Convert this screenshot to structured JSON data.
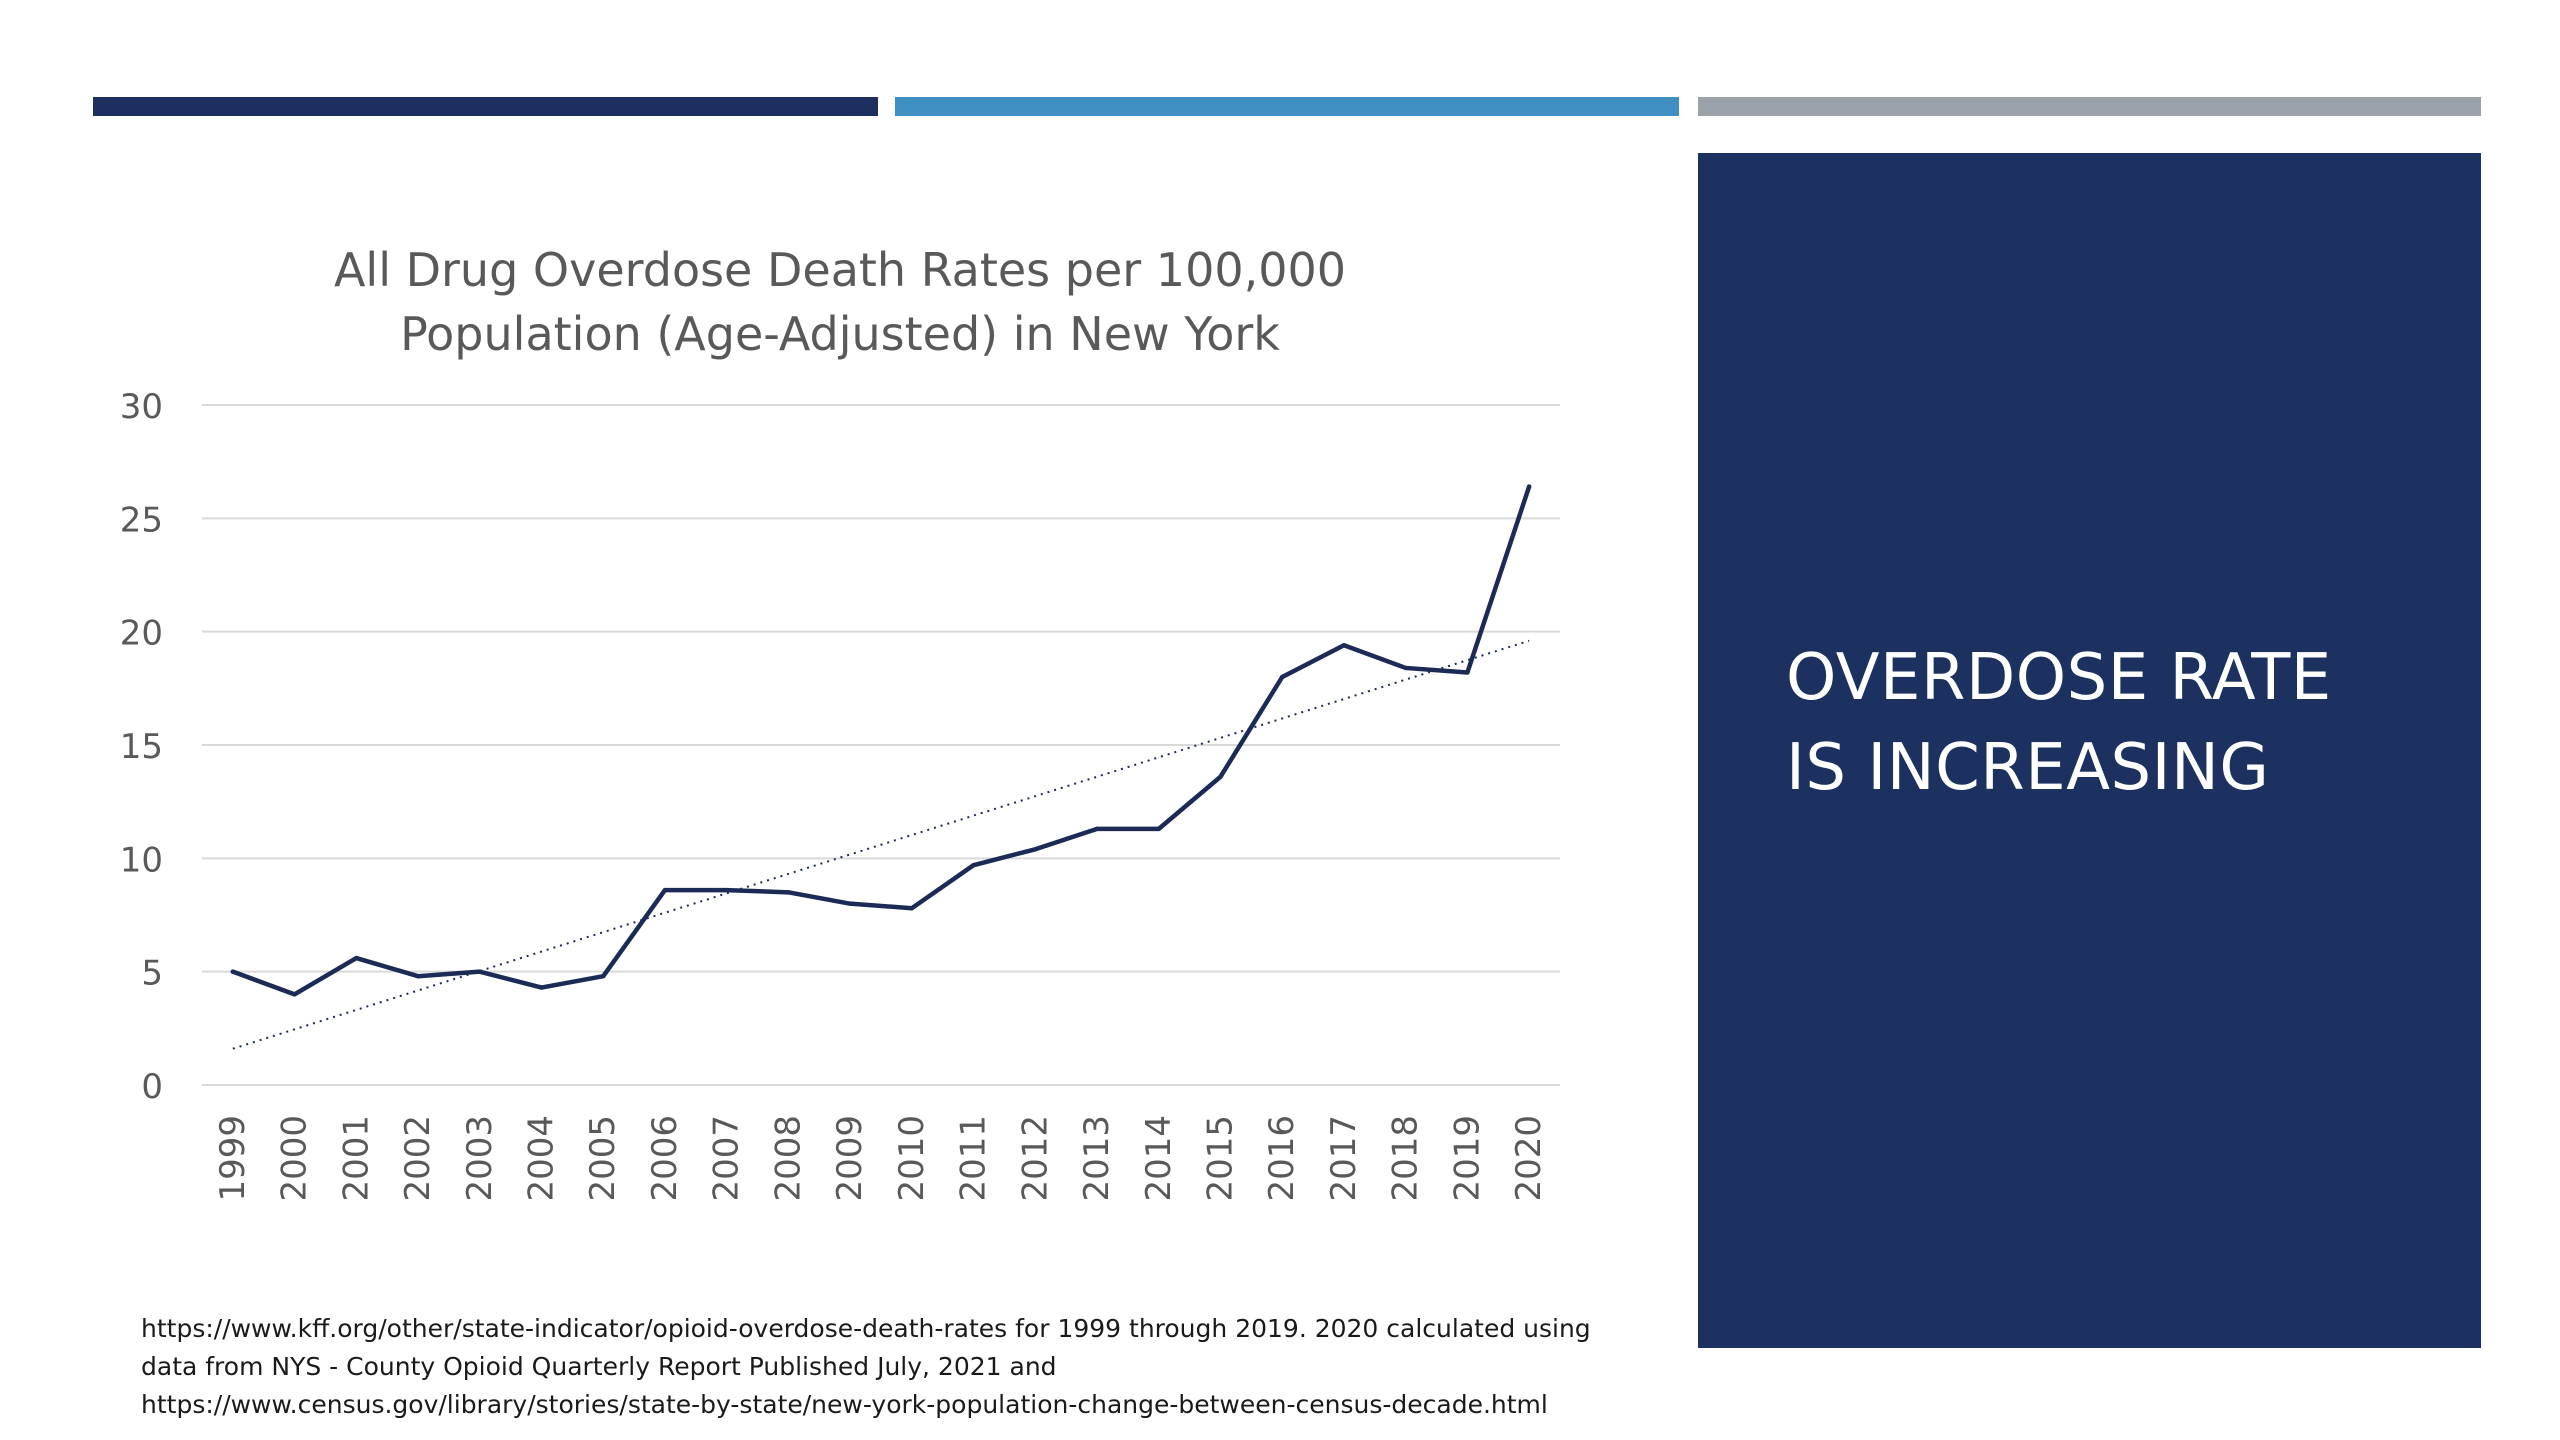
{
  "side_panel": {
    "headline_line1": "OVERDOSE RATE",
    "headline_line2": "IS INCREASING"
  },
  "colors": {
    "bar_dark": "#1c2f5e",
    "bar_mid": "#3f8fc2",
    "bar_gray": "#9aa1a8",
    "panel": "#1c315f",
    "series_line": "#1c2b55"
  },
  "source_note": {
    "line1": "https://www.kff.org/other/state-indicator/opioid-overdose-death-rates for 1999 through 2019. 2020 calculated using",
    "line2": "data from NYS - County Opioid Quarterly Report Published July, 2021 and",
    "line3": "https://www.census.gov/library/stories/state-by-state/new-york-population-change-between-census-decade.html"
  },
  "chart_data": {
    "type": "line",
    "title_line1": "All Drug Overdose Death Rates per 100,000",
    "title_line2": "Population (Age-Adjusted) in New York",
    "xlabel": "",
    "ylabel": "",
    "ylim": [
      0,
      30
    ],
    "yticks": [
      0,
      5,
      10,
      15,
      20,
      25,
      30
    ],
    "grid": true,
    "legend": "none",
    "categories": [
      "1999",
      "2000",
      "2001",
      "2002",
      "2003",
      "2004",
      "2005",
      "2006",
      "2007",
      "2008",
      "2009",
      "2010",
      "2011",
      "2012",
      "2013",
      "2014",
      "2015",
      "2016",
      "2017",
      "2018",
      "2019",
      "2020"
    ],
    "series": [
      {
        "values": [
          5.0,
          4.0,
          5.6,
          4.8,
          5.0,
          4.3,
          4.8,
          8.6,
          8.6,
          8.5,
          8.0,
          7.8,
          9.7,
          10.4,
          11.3,
          11.3,
          13.6,
          18.0,
          19.4,
          18.4,
          18.2,
          26.4
        ]
      }
    ],
    "trendline": {
      "style": "dotted",
      "start": 1.6,
      "end": 19.6
    }
  }
}
